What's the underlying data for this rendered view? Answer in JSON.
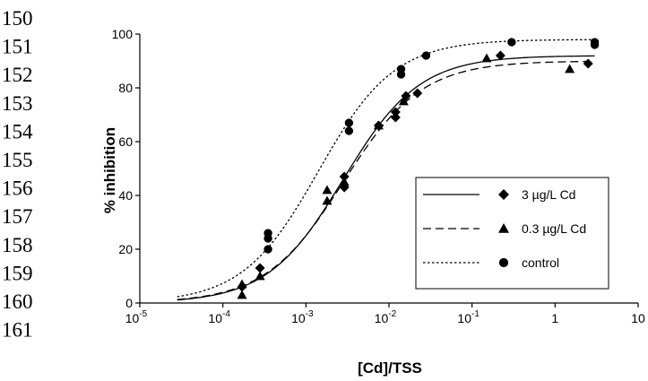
{
  "line_numbers": [
    "150",
    "151",
    "152",
    "153",
    "154",
    "155",
    "156",
    "157",
    "158",
    "159",
    "160",
    "161"
  ],
  "chart_data": {
    "type": "scatter",
    "title": "",
    "xlabel": "[Cd]/TSS",
    "ylabel": "% inhibition",
    "x_scale": "log",
    "xlim": [
      1e-05,
      10
    ],
    "ylim": [
      0,
      100
    ],
    "y_ticks": [
      "0",
      "20",
      "40",
      "60",
      "80",
      "100"
    ],
    "x_ticks": [
      {
        "base": "10",
        "exp": "-5"
      },
      {
        "base": "10",
        "exp": "-4"
      },
      {
        "base": "10",
        "exp": "-3"
      },
      {
        "base": "10",
        "exp": "-2"
      },
      {
        "base": "10",
        "exp": "-1"
      },
      {
        "base": "1",
        "exp": ""
      },
      {
        "base": "10",
        "exp": ""
      }
    ],
    "grid": false,
    "legend_position": "lower-right",
    "series": [
      {
        "name": "3 µg/L Cd",
        "marker": "diamond",
        "curve": "solid",
        "fit": {
          "bottom": 0,
          "top": 92,
          "log_ec50": -2.55,
          "hill": 0.95
        },
        "points": [
          [
            0.00017,
            6
          ],
          [
            0.00028,
            13
          ],
          [
            0.0029,
            43
          ],
          [
            0.0029,
            47
          ],
          [
            0.0075,
            66
          ],
          [
            0.012,
            69
          ],
          [
            0.012,
            71
          ],
          [
            0.016,
            77
          ],
          [
            0.022,
            78
          ],
          [
            0.22,
            92
          ],
          [
            2.5,
            89
          ]
        ]
      },
      {
        "name": "0.3 µg/L Cd",
        "marker": "triangle",
        "curve": "dashed",
        "fit": {
          "bottom": 0,
          "top": 90,
          "log_ec50": -2.55,
          "hill": 0.92
        },
        "points": [
          [
            0.00017,
            3
          ],
          [
            0.00017,
            7
          ],
          [
            0.00028,
            10
          ],
          [
            0.0018,
            38
          ],
          [
            0.0018,
            42
          ],
          [
            0.0029,
            45
          ],
          [
            0.0075,
            66
          ],
          [
            0.015,
            75
          ],
          [
            0.15,
            91
          ],
          [
            1.5,
            87
          ]
        ]
      },
      {
        "name": "control",
        "marker": "circle",
        "curve": "dotted",
        "fit": {
          "bottom": 0,
          "top": 98,
          "log_ec50": -2.85,
          "hill": 0.95
        },
        "points": [
          [
            0.00035,
            20
          ],
          [
            0.00035,
            24
          ],
          [
            0.00035,
            26
          ],
          [
            0.0033,
            64
          ],
          [
            0.0033,
            67
          ],
          [
            0.014,
            85
          ],
          [
            0.014,
            87
          ],
          [
            0.028,
            92
          ],
          [
            0.3,
            97
          ],
          [
            3.0,
            96
          ],
          [
            3.0,
            97
          ]
        ]
      }
    ]
  }
}
